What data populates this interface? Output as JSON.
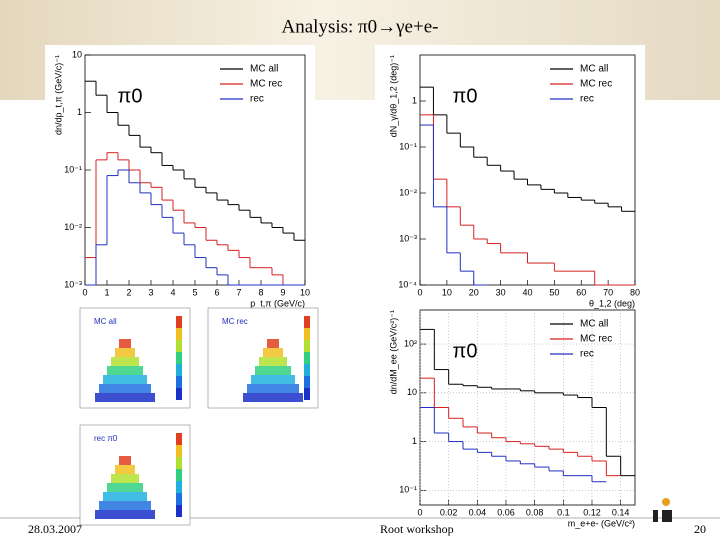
{
  "title": "Analysis:  π0→γe+e-",
  "footer": {
    "date": "28.03.2007",
    "event": "Root workshop",
    "page": "20"
  },
  "panels": [
    {
      "label": "π0",
      "xlabel": "p_t,π (GeV/c)",
      "ylabel": "dn/dp_t,π (GeV/c)⁻¹",
      "log_y": true,
      "grid": false,
      "xlim": [
        0,
        10
      ],
      "ylim": [
        0.001,
        10
      ],
      "xticks": [
        0,
        1,
        2,
        3,
        4,
        5,
        6,
        7,
        8,
        9,
        10
      ],
      "yticks": [
        {
          "value": 0.001,
          "label": "10⁻³"
        },
        {
          "value": 0.01,
          "label": "10⁻²"
        },
        {
          "value": 0.1,
          "label": "10⁻¹"
        },
        1,
        10
      ],
      "bins": [
        0,
        0.5,
        1,
        1.5,
        2,
        2.5,
        3,
        3.5,
        4,
        4.5,
        5,
        5.5,
        6,
        6.5,
        7,
        7.5,
        8,
        8.5,
        9,
        9.5,
        10
      ],
      "series": [
        {
          "name": "MC all",
          "color": "#000000",
          "values": [
            3.5,
            2,
            1,
            0.6,
            0.4,
            0.25,
            0.2,
            0.12,
            0.1,
            0.07,
            0.05,
            0.04,
            0.03,
            0.025,
            0.02,
            0.015,
            0.012,
            0.01,
            0.008,
            0.006
          ]
        },
        {
          "name": "MC rec",
          "color": "#d62020",
          "values": [
            0.003,
            0.15,
            0.2,
            0.15,
            0.1,
            0.06,
            0.05,
            0.03,
            0.02,
            0.012,
            0.01,
            0.006,
            0.005,
            0.004,
            0.003,
            0.002,
            0.002,
            0.0015,
            0.001,
            0.001
          ]
        },
        {
          "name": "rec",
          "color": "#2030c0",
          "values": [
            0.001,
            0.005,
            0.08,
            0.1,
            0.06,
            0.04,
            0.025,
            0.015,
            0.008,
            0.005,
            0.003,
            0.002,
            0.0015,
            0.001,
            0.001,
            0.001,
            0.001,
            0.001,
            0.001,
            0.001
          ]
        }
      ]
    },
    {
      "label": "π0",
      "xlabel": "θ_1,2 (deg)",
      "ylabel": "dN_γ/dθ_1,2 (deg)⁻¹",
      "log_y": true,
      "grid": false,
      "xlim": [
        0,
        80
      ],
      "ylim": [
        0.0001,
        10
      ],
      "xticks": [
        0,
        10,
        20,
        30,
        40,
        50,
        60,
        70,
        80
      ],
      "yticks": [
        {
          "value": 0.0001,
          "label": "10⁻⁴"
        },
        {
          "value": 0.001,
          "label": "10⁻³"
        },
        {
          "value": 0.01,
          "label": "10⁻²"
        },
        {
          "value": 0.1,
          "label": "10⁻¹"
        },
        1
      ],
      "bins": [
        0,
        5,
        10,
        15,
        20,
        25,
        30,
        35,
        40,
        45,
        50,
        55,
        60,
        65,
        70,
        75,
        80
      ],
      "series": [
        {
          "name": "MC all",
          "color": "#000000",
          "values": [
            2,
            0.5,
            0.2,
            0.1,
            0.06,
            0.04,
            0.03,
            0.02,
            0.015,
            0.012,
            0.01,
            0.008,
            0.007,
            0.006,
            0.005,
            0.004
          ]
        },
        {
          "name": "MC rec",
          "color": "#d62020",
          "values": [
            0.5,
            0.02,
            0.005,
            0.002,
            0.001,
            0.0008,
            0.0005,
            0.0005,
            0.0003,
            0.0003,
            0.0002,
            0.0002,
            0.0002,
            0.0001,
            0.0001,
            0.0001
          ]
        },
        {
          "name": "rec",
          "color": "#2030c0",
          "values": [
            0.3,
            0.005,
            0.0005,
            0.0002,
            0.0001,
            null,
            null,
            null,
            null,
            null,
            null,
            null,
            null,
            null,
            null,
            null
          ]
        }
      ]
    },
    {
      "label": "π0",
      "xlabel": "m_e+e- (GeV/c²)",
      "ylabel": "dn/dM_ee (GeV/c²)⁻¹",
      "log_y": true,
      "grid": true,
      "xlim": [
        0,
        0.15
      ],
      "ylim": [
        0.05,
        500
      ],
      "xticks": [
        0,
        0.02,
        0.04,
        0.06,
        0.08,
        0.1,
        0.12,
        0.14
      ],
      "yticks": [
        {
          "value": 0.1,
          "label": "10⁻¹"
        },
        1,
        10,
        {
          "value": 100,
          "label": "10²"
        }
      ],
      "bins": [
        0,
        0.01,
        0.02,
        0.03,
        0.04,
        0.05,
        0.06,
        0.07,
        0.08,
        0.09,
        0.1,
        0.11,
        0.12,
        0.13,
        0.14,
        0.15
      ],
      "series": [
        {
          "name": "MC all",
          "color": "#000000",
          "values": [
            200,
            30,
            15,
            14,
            13,
            12,
            12,
            11,
            10,
            10,
            9,
            8,
            5,
            0.5,
            0.2
          ]
        },
        {
          "name": "MC rec",
          "color": "#d62020",
          "values": [
            20,
            5,
            3,
            2,
            1.5,
            1.2,
            1,
            0.9,
            0.8,
            0.7,
            0.6,
            0.5,
            0.4,
            0.2,
            null
          ]
        },
        {
          "name": "rec",
          "color": "#2030c0",
          "values": [
            5,
            1.5,
            1,
            0.7,
            0.6,
            0.5,
            0.4,
            0.35,
            0.3,
            0.25,
            0.2,
            0.2,
            0.15,
            null,
            null
          ]
        }
      ]
    }
  ],
  "maps": [
    {
      "label": "MC all"
    },
    {
      "label": "MC rec"
    },
    {
      "label": "rec π0"
    }
  ]
}
